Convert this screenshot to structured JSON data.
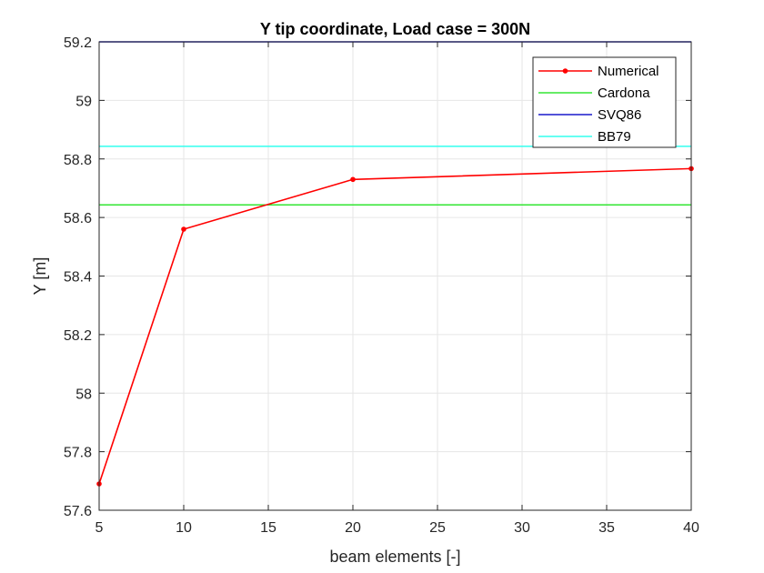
{
  "chart_data": {
    "type": "line",
    "title": "Y tip coordinate, Load case = 300N",
    "xlabel": "beam elements [-]",
    "ylabel": "Y [m]",
    "xlim": [
      5,
      40
    ],
    "ylim": [
      57.6,
      59.2
    ],
    "xticks": [
      5,
      10,
      15,
      20,
      25,
      30,
      35,
      40
    ],
    "yticks": [
      57.6,
      57.8,
      58,
      58.2,
      58.4,
      58.6,
      58.8,
      59,
      59.2
    ],
    "grid": true,
    "legend_position": "top-right",
    "series": [
      {
        "name": "Numerical",
        "kind": "line-marker",
        "color": "#ff0000",
        "x": [
          5,
          10,
          20,
          40
        ],
        "y": [
          57.69,
          58.56,
          58.73,
          58.767
        ]
      },
      {
        "name": "Cardona",
        "kind": "hline",
        "color": "#33e633",
        "y": 58.643
      },
      {
        "name": "SVQ86",
        "kind": "hline",
        "color": "#1a1acc",
        "y": 59.2
      },
      {
        "name": "BB79",
        "kind": "hline",
        "color": "#33ffee",
        "y": 58.843
      }
    ]
  }
}
